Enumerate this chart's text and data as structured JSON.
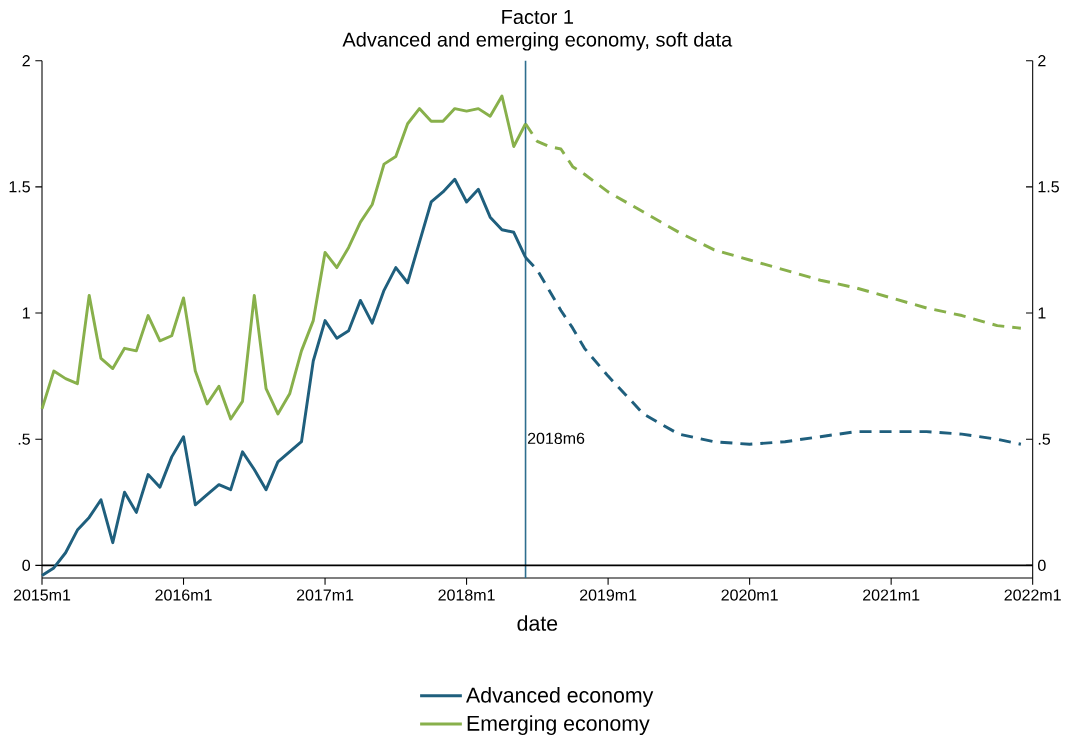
{
  "chart_data": {
    "type": "line",
    "title": "Factor 1",
    "subtitle": "Advanced and emerging economy, soft data",
    "xlabel": "date",
    "xlim": [
      "2015-01",
      "2022-01"
    ],
    "xticks": [
      {
        "value": "2015-01",
        "label": "2015m1"
      },
      {
        "value": "2016-01",
        "label": "2016m1"
      },
      {
        "value": "2017-01",
        "label": "2017m1"
      },
      {
        "value": "2018-01",
        "label": "2018m1"
      },
      {
        "value": "2019-01",
        "label": "2019m1"
      },
      {
        "value": "2020-01",
        "label": "2020m1"
      },
      {
        "value": "2021-01",
        "label": "2021m1"
      },
      {
        "value": "2022-01",
        "label": "2022m1"
      }
    ],
    "ylim": [
      -0.05,
      2
    ],
    "yticks": [
      0,
      {
        "value": 0.5,
        "label": ".5"
      },
      1,
      1.5,
      2
    ],
    "y2lim": [
      -0.05,
      2
    ],
    "y2ticks": [
      0,
      {
        "value": 0.5,
        "label": ".5"
      },
      1,
      1.5,
      2
    ],
    "legend": "bottom",
    "grid": false,
    "marker": "none",
    "ref_lines": [
      {
        "axis": "x",
        "value": "2018-06",
        "label": "2018m6",
        "color": "#2e6e8e"
      },
      {
        "axis": "y",
        "value": 0,
        "color": "#000000"
      }
    ],
    "series": [
      {
        "name": "Advanced economy",
        "color": "#1f5f7d",
        "line_style": "solid",
        "x": [
          "2015-01",
          "2015-02",
          "2015-03",
          "2015-04",
          "2015-05",
          "2015-06",
          "2015-07",
          "2015-08",
          "2015-09",
          "2015-10",
          "2015-11",
          "2015-12",
          "2016-01",
          "2016-02",
          "2016-03",
          "2016-04",
          "2016-05",
          "2016-06",
          "2016-07",
          "2016-08",
          "2016-09",
          "2016-10",
          "2016-11",
          "2016-12",
          "2017-01",
          "2017-02",
          "2017-03",
          "2017-04",
          "2017-05",
          "2017-06",
          "2017-07",
          "2017-08",
          "2017-09",
          "2017-10",
          "2017-11",
          "2017-12",
          "2018-01",
          "2018-02",
          "2018-03",
          "2018-04",
          "2018-05",
          "2018-06"
        ],
        "values": [
          -0.04,
          -0.01,
          0.05,
          0.14,
          0.19,
          0.26,
          0.09,
          0.29,
          0.21,
          0.36,
          0.31,
          0.43,
          0.51,
          0.24,
          0.28,
          0.32,
          0.3,
          0.45,
          0.38,
          0.3,
          0.41,
          0.45,
          0.49,
          0.81,
          0.97,
          0.9,
          0.93,
          1.05,
          0.96,
          1.09,
          1.18,
          1.12,
          1.28,
          1.44,
          1.48,
          1.53,
          1.44,
          1.49,
          1.38,
          1.33,
          1.32,
          1.22
        ]
      },
      {
        "name": "Emerging economy",
        "color": "#88b04b",
        "line_style": "solid",
        "x": [
          "2015-01",
          "2015-02",
          "2015-03",
          "2015-04",
          "2015-05",
          "2015-06",
          "2015-07",
          "2015-08",
          "2015-09",
          "2015-10",
          "2015-11",
          "2015-12",
          "2016-01",
          "2016-02",
          "2016-03",
          "2016-04",
          "2016-05",
          "2016-06",
          "2016-07",
          "2016-08",
          "2016-09",
          "2016-10",
          "2016-11",
          "2016-12",
          "2017-01",
          "2017-02",
          "2017-03",
          "2017-04",
          "2017-05",
          "2017-06",
          "2017-07",
          "2017-08",
          "2017-09",
          "2017-10",
          "2017-11",
          "2017-12",
          "2018-01",
          "2018-02",
          "2018-03",
          "2018-04",
          "2018-05",
          "2018-06"
        ],
        "values": [
          0.62,
          0.77,
          0.74,
          0.72,
          1.07,
          0.82,
          0.78,
          0.86,
          0.85,
          0.99,
          0.89,
          0.91,
          1.06,
          0.77,
          0.64,
          0.71,
          0.58,
          0.65,
          1.07,
          0.7,
          0.6,
          0.68,
          0.85,
          0.97,
          1.24,
          1.18,
          1.26,
          1.36,
          1.43,
          1.59,
          1.62,
          1.75,
          1.81,
          1.76,
          1.76,
          1.81,
          1.8,
          1.81,
          1.78,
          1.86,
          1.66,
          1.75
        ]
      },
      {
        "color": "#1f5f7d",
        "line_style": "dashed",
        "x": [
          "2018-06",
          "2018-07",
          "2018-08",
          "2018-09",
          "2018-10",
          "2018-11",
          "2019-01",
          "2019-04",
          "2019-07",
          "2019-10",
          "2020-01",
          "2020-04",
          "2020-07",
          "2020-10",
          "2021-01",
          "2021-04",
          "2021-07",
          "2021-10",
          "2021-12"
        ],
        "values": [
          1.22,
          1.17,
          1.09,
          1.01,
          0.94,
          0.86,
          0.75,
          0.6,
          0.52,
          0.49,
          0.48,
          0.49,
          0.51,
          0.53,
          0.53,
          0.53,
          0.52,
          0.5,
          0.48
        ]
      },
      {
        "color": "#88b04b",
        "line_style": "dashed",
        "x": [
          "2018-06",
          "2018-07",
          "2018-08",
          "2018-09",
          "2018-10",
          "2018-11",
          "2019-01",
          "2019-04",
          "2019-07",
          "2019-10",
          "2020-01",
          "2020-04",
          "2020-07",
          "2020-10",
          "2021-01",
          "2021-04",
          "2021-07",
          "2021-10",
          "2021-12"
        ],
        "values": [
          1.75,
          1.68,
          1.66,
          1.65,
          1.58,
          1.55,
          1.48,
          1.4,
          1.32,
          1.25,
          1.21,
          1.17,
          1.13,
          1.1,
          1.06,
          1.02,
          0.99,
          0.95,
          0.94
        ]
      }
    ]
  }
}
